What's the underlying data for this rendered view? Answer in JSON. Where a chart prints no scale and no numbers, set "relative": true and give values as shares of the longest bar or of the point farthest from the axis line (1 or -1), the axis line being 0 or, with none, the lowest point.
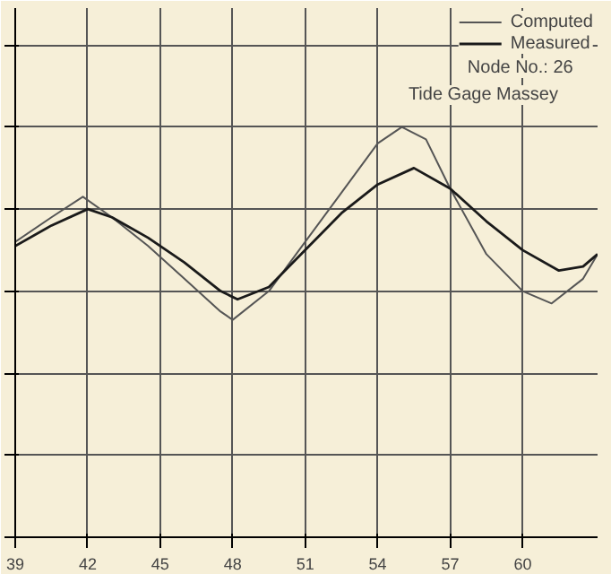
{
  "chart_data": {
    "type": "line",
    "relative": true,
    "series": [
      {
        "name": "Computed",
        "color": "#555555",
        "x": [
          39,
          40.5,
          41.8,
          43,
          44.5,
          46,
          47.5,
          48,
          49.5,
          51,
          52.5,
          54,
          55,
          56,
          57,
          58.5,
          60,
          61.2,
          62.5,
          63.1
        ],
        "values": [
          0.72,
          0.78,
          0.83,
          0.78,
          0.71,
          0.63,
          0.55,
          0.53,
          0.6,
          0.72,
          0.84,
          0.96,
          1.0,
          0.97,
          0.85,
          0.69,
          0.6,
          0.57,
          0.63,
          0.69
        ]
      },
      {
        "name": "Measured",
        "color": "#1a1a1a",
        "x": [
          39,
          40.5,
          42,
          43,
          44.5,
          46,
          47.5,
          48.2,
          49.5,
          51,
          52.5,
          54,
          55.5,
          57,
          58.5,
          60,
          61.5,
          62.5,
          63.1
        ],
        "values": [
          0.71,
          0.76,
          0.8,
          0.78,
          0.73,
          0.67,
          0.6,
          0.58,
          0.61,
          0.7,
          0.79,
          0.86,
          0.9,
          0.85,
          0.77,
          0.7,
          0.65,
          0.66,
          0.69
        ]
      }
    ],
    "xlim": [
      39,
      63.1
    ],
    "xticks": [
      39,
      42,
      45,
      48,
      51,
      54,
      57,
      60
    ],
    "grid": true,
    "legend": "top right",
    "line_style": "solid",
    "marker": "none",
    "annotations": [
      "Node No.:       26",
      "Tide Gage          Massey"
    ]
  }
}
